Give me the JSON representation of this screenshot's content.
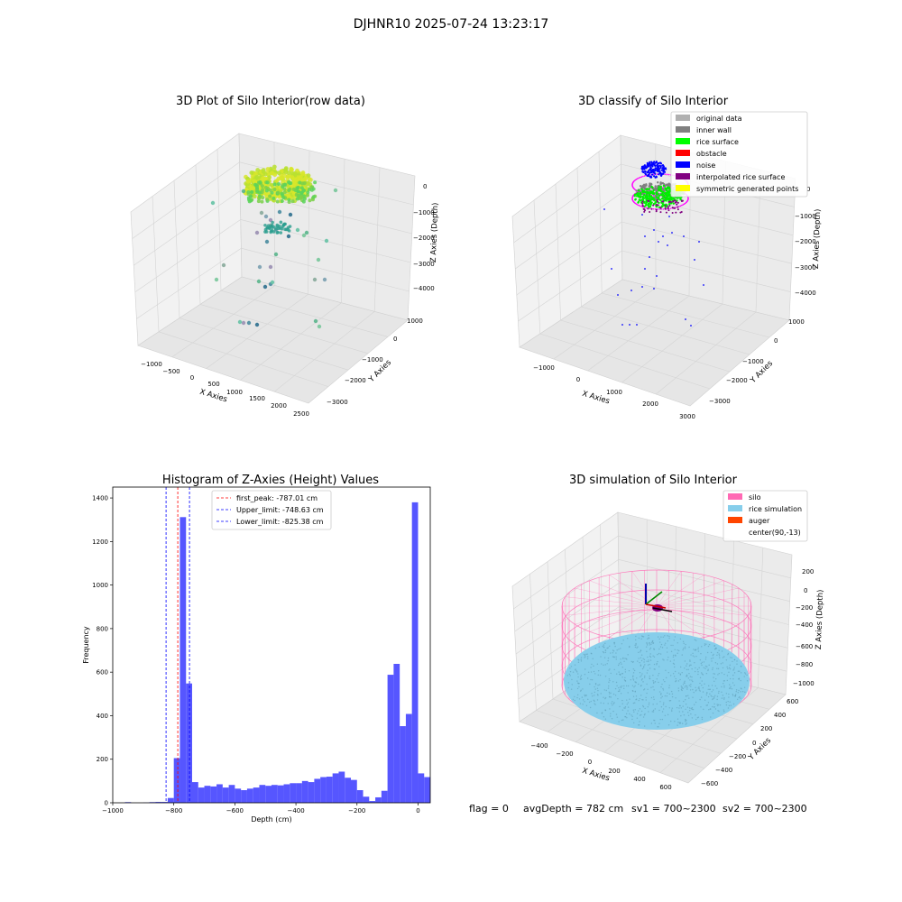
{
  "suptitle": "DJHNR10 2025-07-24 13:23:17",
  "footer": {
    "flag": "flag = 0",
    "avg_depth": "avgDepth = 782 cm",
    "sv1": "sv1 = 700~2300",
    "sv2": "sv2 = 700~2300"
  },
  "chart_data": [
    {
      "type": "scatter",
      "panel": "raw",
      "title": "3D Plot of Silo Interior(row data)",
      "xlabel": "X Axies",
      "ylabel": "Y Axies",
      "zlabel": "Z Axies (Depth)",
      "x_ticks": [
        "−1000",
        "−500",
        "0",
        "500",
        "1000",
        "1500",
        "2000",
        "2500"
      ],
      "y_ticks": [
        "1000",
        "0",
        "−1000",
        "−2000",
        "−3000"
      ],
      "z_ticks": [
        "0",
        "−1000",
        "−2000",
        "−3000",
        "−4000"
      ]
    },
    {
      "type": "scatter",
      "panel": "classify",
      "title": "3D classify of Silo Interior",
      "xlabel": "X Axies",
      "ylabel": "Y Axies",
      "zlabel": "Z Axies (Depth)",
      "x_ticks": [
        "−1000",
        "0",
        "1000",
        "2000",
        "3000"
      ],
      "y_ticks": [
        "1000",
        "0",
        "−1000",
        "−2000",
        "−3000"
      ],
      "z_ticks": [
        "0",
        "−1000",
        "−2000",
        "−3000",
        "−4000"
      ],
      "legend_position": "top-right",
      "legend": [
        {
          "label": "original data",
          "color": "#b0b0b0"
        },
        {
          "label": "inner wall",
          "color": "#808080"
        },
        {
          "label": "rice surface",
          "color": "#00ff00"
        },
        {
          "label": "obstacle",
          "color": "#ff0000"
        },
        {
          "label": "noise",
          "color": "#0000ff"
        },
        {
          "label": "interpolated rice surface",
          "color": "#800080"
        },
        {
          "label": "symmetric generated points",
          "color": "#ffff00"
        }
      ]
    },
    {
      "type": "bar",
      "panel": "histogram",
      "title": "Histogram of Z-Axies (Height) Values",
      "xlabel": "Depth (cm)",
      "ylabel": "Frequency",
      "xlim": [
        -1000,
        40
      ],
      "ylim": [
        0,
        1450
      ],
      "x_ticks": [
        -1000,
        -800,
        -600,
        -400,
        -200,
        0
      ],
      "y_ticks": [
        0,
        200,
        400,
        600,
        800,
        1000,
        1200,
        1400
      ],
      "bar_color": "#4d4dff",
      "bins": [
        [
          -1000,
          -980,
          0
        ],
        [
          -980,
          -960,
          0
        ],
        [
          -960,
          -940,
          3
        ],
        [
          -940,
          -920,
          0
        ],
        [
          -920,
          -900,
          0
        ],
        [
          -900,
          -880,
          1
        ],
        [
          -880,
          -860,
          3
        ],
        [
          -860,
          -840,
          4
        ],
        [
          -840,
          -820,
          4
        ],
        [
          -820,
          -800,
          22
        ],
        [
          -800,
          -780,
          205
        ],
        [
          -780,
          -760,
          1312
        ],
        [
          -760,
          -740,
          548
        ],
        [
          -740,
          -720,
          95
        ],
        [
          -720,
          -700,
          70
        ],
        [
          -700,
          -680,
          78
        ],
        [
          -680,
          -660,
          75
        ],
        [
          -660,
          -640,
          85
        ],
        [
          -640,
          -620,
          70
        ],
        [
          -620,
          -600,
          82
        ],
        [
          -600,
          -580,
          65
        ],
        [
          -580,
          -560,
          58
        ],
        [
          -560,
          -540,
          65
        ],
        [
          -540,
          -520,
          70
        ],
        [
          -520,
          -500,
          82
        ],
        [
          -500,
          -480,
          78
        ],
        [
          -480,
          -460,
          82
        ],
        [
          -460,
          -440,
          80
        ],
        [
          -440,
          -420,
          85
        ],
        [
          -420,
          -400,
          90
        ],
        [
          -400,
          -380,
          90
        ],
        [
          -380,
          -360,
          100
        ],
        [
          -360,
          -340,
          95
        ],
        [
          -340,
          -320,
          110
        ],
        [
          -320,
          -300,
          118
        ],
        [
          -300,
          -280,
          120
        ],
        [
          -280,
          -260,
          135
        ],
        [
          -260,
          -240,
          143
        ],
        [
          -240,
          -220,
          115
        ],
        [
          -220,
          -200,
          105
        ],
        [
          -200,
          -180,
          58
        ],
        [
          -180,
          -160,
          28
        ],
        [
          -160,
          -140,
          8
        ],
        [
          -140,
          -120,
          25
        ],
        [
          -120,
          -100,
          55
        ],
        [
          -100,
          -80,
          588
        ],
        [
          -80,
          -60,
          638
        ],
        [
          -60,
          -40,
          352
        ],
        [
          -40,
          -20,
          408
        ],
        [
          -20,
          0,
          1380
        ],
        [
          0,
          20,
          135
        ],
        [
          20,
          40,
          118
        ]
      ],
      "lines": [
        {
          "label": "first_peak: -787.01 cm",
          "x": -787.01,
          "color": "#ff0000"
        },
        {
          "label": "Upper_limit: -748.63 cm",
          "x": -748.63,
          "color": "#0000ff"
        },
        {
          "label": "Lower_limit: -825.38 cm",
          "x": -825.38,
          "color": "#0000ff"
        }
      ],
      "legend_position": "top-center"
    },
    {
      "type": "scatter",
      "panel": "simulation",
      "title": "3D simulation of Silo Interior",
      "xlabel": "X Axies",
      "ylabel": "Y Axies",
      "zlabel": "Z Axies (Depth)",
      "x_ticks": [
        "−400",
        "−200",
        "0",
        "200",
        "400",
        "600"
      ],
      "y_ticks": [
        "600",
        "400",
        "200",
        "0",
        "−200",
        "−400",
        "−600"
      ],
      "z_ticks": [
        "200",
        "0",
        "−200",
        "−400",
        "−600",
        "−800",
        "−1000"
      ],
      "legend_position": "top-right",
      "legend": [
        {
          "label": "silo",
          "color": "#ff69b4"
        },
        {
          "label": "rice simulation",
          "color": "#87ceeb"
        },
        {
          "label": "auger",
          "color": "#ff4500"
        },
        {
          "label": "center(90,-13)",
          "color": ""
        }
      ]
    }
  ]
}
